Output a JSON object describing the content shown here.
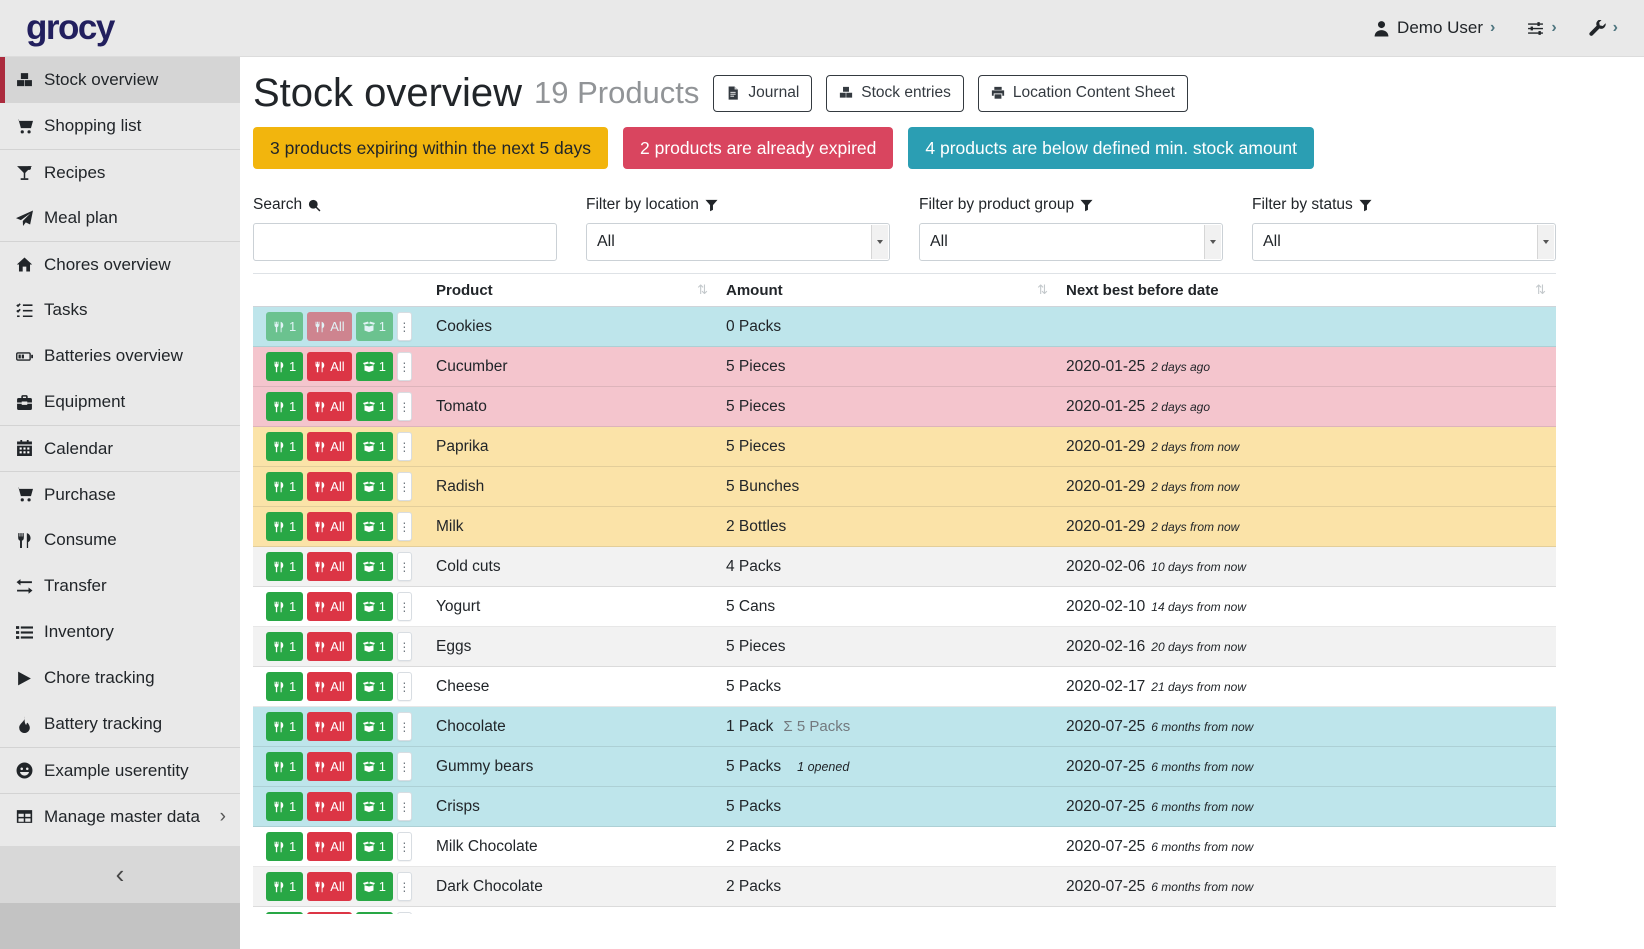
{
  "colors": {
    "brand": "#221f5e",
    "sidebar_accent": "#ab2b3d",
    "success": "#28a745",
    "danger": "#dc3545",
    "row_info": "#bee5eb",
    "row_danger": "#f4c5cd",
    "row_warning": "#fbe3a8",
    "row_stripe": "#f2f2f2"
  },
  "navbar": {
    "brand": "grocy",
    "user": {
      "icon": "user",
      "label": "Demo User",
      "chevron": "›"
    },
    "settings": {
      "icon": "sliders",
      "chevron": "›"
    },
    "admin": {
      "icon": "wrench",
      "chevron": "›"
    }
  },
  "sidebar": {
    "items": [
      {
        "label": "Stock overview",
        "icon": "boxes",
        "state": "active",
        "chevron": ""
      },
      {
        "label": "Shopping list",
        "icon": "cart",
        "state": "",
        "chevron": ""
      },
      {
        "label": "Recipes",
        "icon": "cocktail",
        "state": "divided",
        "chevron": ""
      },
      {
        "label": "Meal plan",
        "icon": "paper-plane",
        "state": "",
        "chevron": ""
      },
      {
        "label": "Chores overview",
        "icon": "home",
        "state": "divided",
        "chevron": ""
      },
      {
        "label": "Tasks",
        "icon": "tasks",
        "state": "",
        "chevron": ""
      },
      {
        "label": "Batteries overview",
        "icon": "battery",
        "state": "",
        "chevron": ""
      },
      {
        "label": "Equipment",
        "icon": "toolbox",
        "state": "",
        "chevron": ""
      },
      {
        "label": "Calendar",
        "icon": "calendar",
        "state": "divided",
        "chevron": ""
      },
      {
        "label": "Purchase",
        "icon": "cart",
        "state": "divided",
        "chevron": ""
      },
      {
        "label": "Consume",
        "icon": "utensils",
        "state": "",
        "chevron": ""
      },
      {
        "label": "Transfer",
        "icon": "exchange",
        "state": "",
        "chevron": ""
      },
      {
        "label": "Inventory",
        "icon": "list",
        "state": "",
        "chevron": ""
      },
      {
        "label": "Chore tracking",
        "icon": "play",
        "state": "",
        "chevron": ""
      },
      {
        "label": "Battery tracking",
        "icon": "flame",
        "state": "",
        "chevron": ""
      },
      {
        "label": "Example userentity",
        "icon": "smiley",
        "state": "divided",
        "chevron": ""
      },
      {
        "label": "Manage master data",
        "icon": "table-grid",
        "state": "divided",
        "chevron": "›"
      }
    ],
    "collapse_glyph": "‹"
  },
  "header": {
    "title": "Stock overview",
    "subtitle": "19 Products",
    "buttons": [
      {
        "label": "Journal",
        "icon": "file"
      },
      {
        "label": "Stock entries",
        "icon": "boxes"
      },
      {
        "label": "Location Content Sheet",
        "icon": "print"
      }
    ]
  },
  "alerts": [
    {
      "label": "3 products expiring within the next 5 days",
      "color": "#f2b50d",
      "text_color": "#212529"
    },
    {
      "label": "2 products are already expired",
      "color": "#d9455f",
      "text_color": "#ffffff"
    },
    {
      "label": "4 products are below defined min. stock amount",
      "color": "#2b9eb3",
      "text_color": "#ffffff"
    }
  ],
  "filters": [
    {
      "label": "Search",
      "icon": "search",
      "value": ""
    },
    {
      "label": "Filter by location",
      "icon": "filter",
      "value": "All"
    },
    {
      "label": "Filter by product group",
      "icon": "filter",
      "value": "All"
    },
    {
      "label": "Filter by status",
      "icon": "filter",
      "value": "All"
    }
  ],
  "table": {
    "columns": [
      "Product",
      "Amount",
      "Next best before date"
    ],
    "sort_glyph": "⇅",
    "row_actions": {
      "consume_one": {
        "label": "1",
        "icon": "utensils"
      },
      "consume_all": {
        "label": "All",
        "icon": "utensils"
      },
      "open_one": {
        "label": "1",
        "icon": "box-open"
      },
      "more_icon": "ellipsis-v"
    },
    "rows": [
      {
        "product": "Cookies",
        "amount": "0 Packs",
        "amount_total": "",
        "amount_note": "",
        "date": "",
        "date_note": "",
        "status": "info",
        "actions_state": "muted"
      },
      {
        "product": "Cucumber",
        "amount": "5 Pieces",
        "amount_total": "",
        "amount_note": "",
        "date": "2020-01-25",
        "date_note": "2 days ago",
        "status": "danger",
        "actions_state": ""
      },
      {
        "product": "Tomato",
        "amount": "5 Pieces",
        "amount_total": "",
        "amount_note": "",
        "date": "2020-01-25",
        "date_note": "2 days ago",
        "status": "danger",
        "actions_state": ""
      },
      {
        "product": "Paprika",
        "amount": "5 Pieces",
        "amount_total": "",
        "amount_note": "",
        "date": "2020-01-29",
        "date_note": "2 days from now",
        "status": "warning",
        "actions_state": ""
      },
      {
        "product": "Radish",
        "amount": "5 Bunches",
        "amount_total": "",
        "amount_note": "",
        "date": "2020-01-29",
        "date_note": "2 days from now",
        "status": "warning",
        "actions_state": ""
      },
      {
        "product": "Milk",
        "amount": "2 Bottles",
        "amount_total": "",
        "amount_note": "",
        "date": "2020-01-29",
        "date_note": "2 days from now",
        "status": "warning",
        "actions_state": ""
      },
      {
        "product": "Cold cuts",
        "amount": "4 Packs",
        "amount_total": "",
        "amount_note": "",
        "date": "2020-02-06",
        "date_note": "10 days from now",
        "status": "stripe",
        "actions_state": ""
      },
      {
        "product": "Yogurt",
        "amount": "5 Cans",
        "amount_total": "",
        "amount_note": "",
        "date": "2020-02-10",
        "date_note": "14 days from now",
        "status": "",
        "actions_state": ""
      },
      {
        "product": "Eggs",
        "amount": "5 Pieces",
        "amount_total": "",
        "amount_note": "",
        "date": "2020-02-16",
        "date_note": "20 days from now",
        "status": "stripe",
        "actions_state": ""
      },
      {
        "product": "Cheese",
        "amount": "5 Packs",
        "amount_total": "",
        "amount_note": "",
        "date": "2020-02-17",
        "date_note": "21 days from now",
        "status": "",
        "actions_state": ""
      },
      {
        "product": "Chocolate",
        "amount": "1 Pack",
        "amount_total": "Σ 5 Packs",
        "amount_note": "",
        "date": "2020-07-25",
        "date_note": "6 months from now",
        "status": "info",
        "actions_state": ""
      },
      {
        "product": "Gummy bears",
        "amount": "5 Packs",
        "amount_total": "",
        "amount_note": "1 opened",
        "date": "2020-07-25",
        "date_note": "6 months from now",
        "status": "info",
        "actions_state": ""
      },
      {
        "product": "Crisps",
        "amount": "5 Packs",
        "amount_total": "",
        "amount_note": "",
        "date": "2020-07-25",
        "date_note": "6 months from now",
        "status": "info",
        "actions_state": ""
      },
      {
        "product": "Milk Chocolate",
        "amount": "2 Packs",
        "amount_total": "",
        "amount_note": "",
        "date": "2020-07-25",
        "date_note": "6 months from now",
        "status": "",
        "actions_state": ""
      },
      {
        "product": "Dark Chocolate",
        "amount": "2 Packs",
        "amount_total": "",
        "amount_note": "",
        "date": "2020-07-25",
        "date_note": "6 months from now",
        "status": "stripe",
        "actions_state": ""
      },
      {
        "product": "",
        "amount": "",
        "amount_total": "",
        "amount_note": "",
        "date": "",
        "date_note": "",
        "status": "",
        "actions_state": ""
      }
    ]
  }
}
